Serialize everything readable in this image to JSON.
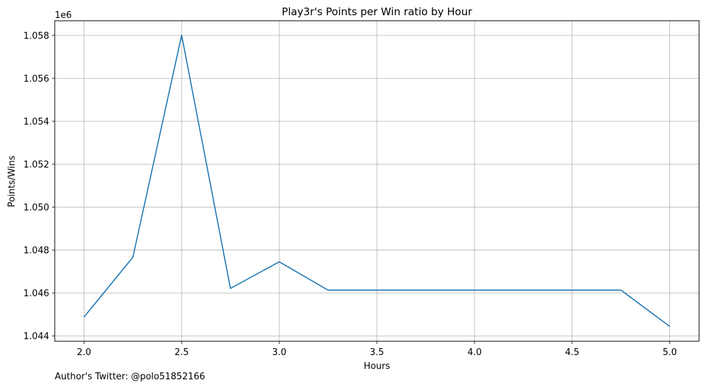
{
  "chart_data": {
    "type": "line",
    "title": "Play3r's Points per Win ratio by Hour",
    "xlabel": "Hours",
    "ylabel": "Points/Wins",
    "y_offset_label": "1e6",
    "xlim": [
      1.85,
      5.15
    ],
    "ylim": [
      1.04375,
      1.05868
    ],
    "grid": true,
    "x_ticks": [
      2.0,
      2.5,
      3.0,
      3.5,
      4.0,
      4.5,
      5.0
    ],
    "x_tick_labels": [
      "2.0",
      "2.5",
      "3.0",
      "3.5",
      "4.0",
      "4.5",
      "5.0"
    ],
    "y_ticks": [
      1.044,
      1.046,
      1.048,
      1.05,
      1.052,
      1.054,
      1.056,
      1.058
    ],
    "y_tick_labels": [
      "1.044",
      "1.046",
      "1.048",
      "1.050",
      "1.052",
      "1.054",
      "1.056",
      "1.058"
    ],
    "series": [
      {
        "color": "#1f77b4",
        "x": [
          2.0,
          2.25,
          2.5,
          2.75,
          3.0,
          3.25,
          3.5,
          3.75,
          4.0,
          4.25,
          4.5,
          4.75,
          5.0
        ],
        "y": [
          1.04488,
          1.04766,
          1.05801,
          1.04621,
          1.04745,
          1.04613,
          1.04613,
          1.04613,
          1.04613,
          1.04613,
          1.04613,
          1.04613,
          1.04444
        ]
      }
    ]
  },
  "footnote": "Author's Twitter: @polo51852166"
}
